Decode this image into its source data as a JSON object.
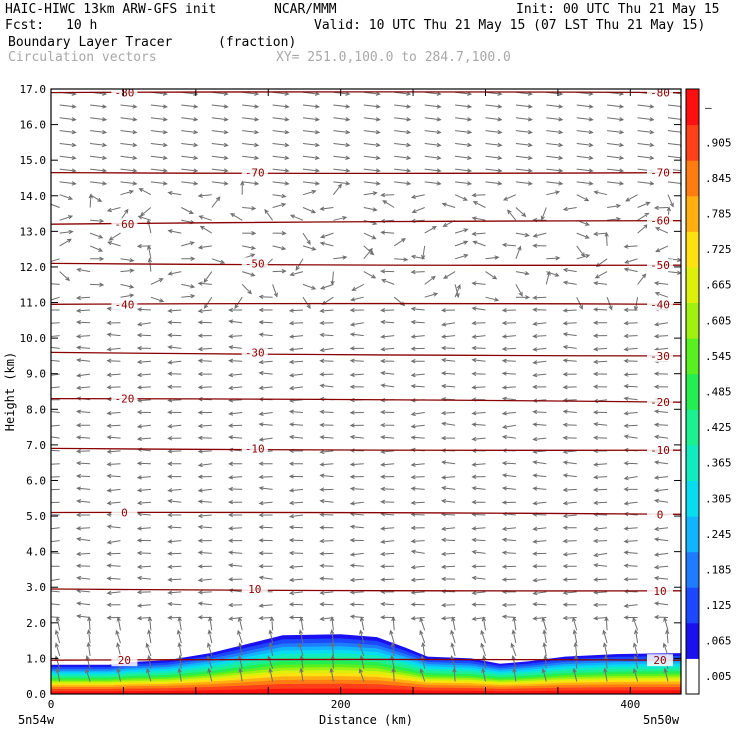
{
  "header": {
    "model": "HAIC-HIWC 13km ARW-GFS init",
    "org": "NCAR/MMM",
    "init": "Init: 00 UTC Thu 21 May 15",
    "fcst_label": "Fcst:",
    "fcst_value": "10 h",
    "valid": "Valid: 10 UTC Thu 21 May 15 (07 LST Thu 21 May 15)",
    "field_name": "Boundary Layer Tracer",
    "field_units": "(fraction)",
    "vector_label": "Circulation vectors",
    "xy_label": "XY= 251.0,100.0 to 284.7,100.0"
  },
  "chart_data": {
    "type": "heatmap",
    "title": "Boundary Layer Tracer",
    "units": "(fraction)",
    "xlabel": "Distance (km)",
    "ylabel": "Height (km)",
    "xlim": [
      0,
      435
    ],
    "ylim": [
      0,
      17
    ],
    "x_ticks": [
      "0",
      "200",
      "400"
    ],
    "x_tick_values": [
      0,
      200,
      400
    ],
    "x_tick_minor": [
      0,
      50,
      100,
      150,
      200,
      250,
      300,
      350,
      400
    ],
    "y_ticks": [
      "0.0",
      "1.0",
      "2.0",
      "3.0",
      "4.0",
      "5.0",
      "6.0",
      "7.0",
      "8.0",
      "9.0",
      "10.0",
      "11.0",
      "12.0",
      "13.0",
      "14.0",
      "15.0",
      "16.0",
      "17.0"
    ],
    "y_tick_values": [
      0,
      1,
      2,
      3,
      4,
      5,
      6,
      7,
      8,
      9,
      10,
      11,
      12,
      13,
      14,
      15,
      16,
      17
    ],
    "x_endpoint_labels": [
      "5n54w",
      "5n50w"
    ],
    "tracer_top_km": [
      [
        0,
        0.82
      ],
      [
        40,
        0.82
      ],
      [
        55,
        0.9
      ],
      [
        80,
        0.95
      ],
      [
        110,
        1.15
      ],
      [
        140,
        1.45
      ],
      [
        160,
        1.65
      ],
      [
        200,
        1.68
      ],
      [
        225,
        1.6
      ],
      [
        245,
        1.3
      ],
      [
        260,
        1.05
      ],
      [
        290,
        1.0
      ],
      [
        310,
        0.85
      ],
      [
        330,
        0.92
      ],
      [
        355,
        1.05
      ],
      [
        390,
        1.12
      ],
      [
        435,
        1.15
      ]
    ],
    "temperature_contours": {
      "units": "°C",
      "levels": [
        {
          "label": "20",
          "y_left": 0.95,
          "y_right": 0.95
        },
        {
          "label": "10",
          "y_left": 2.95,
          "y_right": 2.9
        },
        {
          "label": "0",
          "y_left": 5.1,
          "y_right": 5.05
        },
        {
          "label": "-10",
          "y_left": 6.9,
          "y_right": 6.85
        },
        {
          "label": "-20",
          "y_left": 8.3,
          "y_right": 8.2
        },
        {
          "label": "-30",
          "y_left": 9.6,
          "y_right": 9.5
        },
        {
          "label": "-40",
          "y_left": 10.95,
          "y_right": 10.95
        },
        {
          "label": "-50",
          "y_left": 12.1,
          "y_right": 12.05
        },
        {
          "label": "-60",
          "y_left": 13.2,
          "y_right": 13.3
        },
        {
          "label": "-70",
          "y_left": 14.65,
          "y_right": 14.65
        },
        {
          "label": "-80",
          "y_left": 16.9,
          "y_right": 16.9
        }
      ]
    },
    "colorbar": {
      "labels": [
        ".005",
        ".065",
        ".125",
        ".185",
        ".245",
        ".305",
        ".365",
        ".425",
        ".485",
        ".545",
        ".605",
        ".665",
        ".725",
        ".785",
        ".845",
        ".905",
        "–"
      ],
      "colors": [
        "#ffffff",
        "#1a10f0",
        "#1c48ff",
        "#1f7cff",
        "#12b4ff",
        "#08dcf0",
        "#10ecc0",
        "#1cf090",
        "#24ee50",
        "#58f020",
        "#a0f010",
        "#dcf00c",
        "#ffe010",
        "#ffb010",
        "#ff7c12",
        "#ff4018",
        "#ff1010"
      ]
    }
  }
}
